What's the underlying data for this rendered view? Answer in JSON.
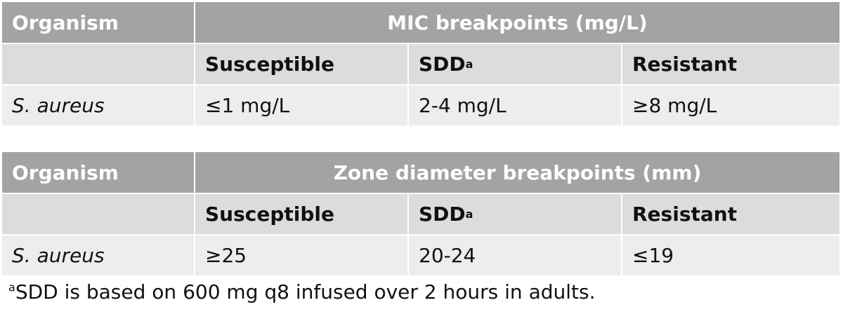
{
  "tables": [
    {
      "header": {
        "organism": "Organism",
        "title": "MIC breakpoints (mg/L)"
      },
      "subheader": [
        {
          "text": "Susceptible"
        },
        {
          "text": "SDD",
          "sup": "a"
        },
        {
          "text": "Resistant"
        }
      ],
      "row": [
        "S. aureus",
        "≤1 mg/L",
        "2-4 mg/L",
        "≥8 mg/L"
      ]
    },
    {
      "header": {
        "organism": "Organism",
        "title": "Zone diameter breakpoints (mm)"
      },
      "subheader": [
        {
          "text": "Susceptible"
        },
        {
          "text": "SDD",
          "sup": "a"
        },
        {
          "text": "Resistant"
        }
      ],
      "row": [
        "S. aureus",
        "≥25",
        "20-24",
        "≤19"
      ]
    }
  ],
  "footnote": {
    "marker": "a",
    "text": "SDD is based on 600 mg q8 infused over 2 hours in adults."
  }
}
